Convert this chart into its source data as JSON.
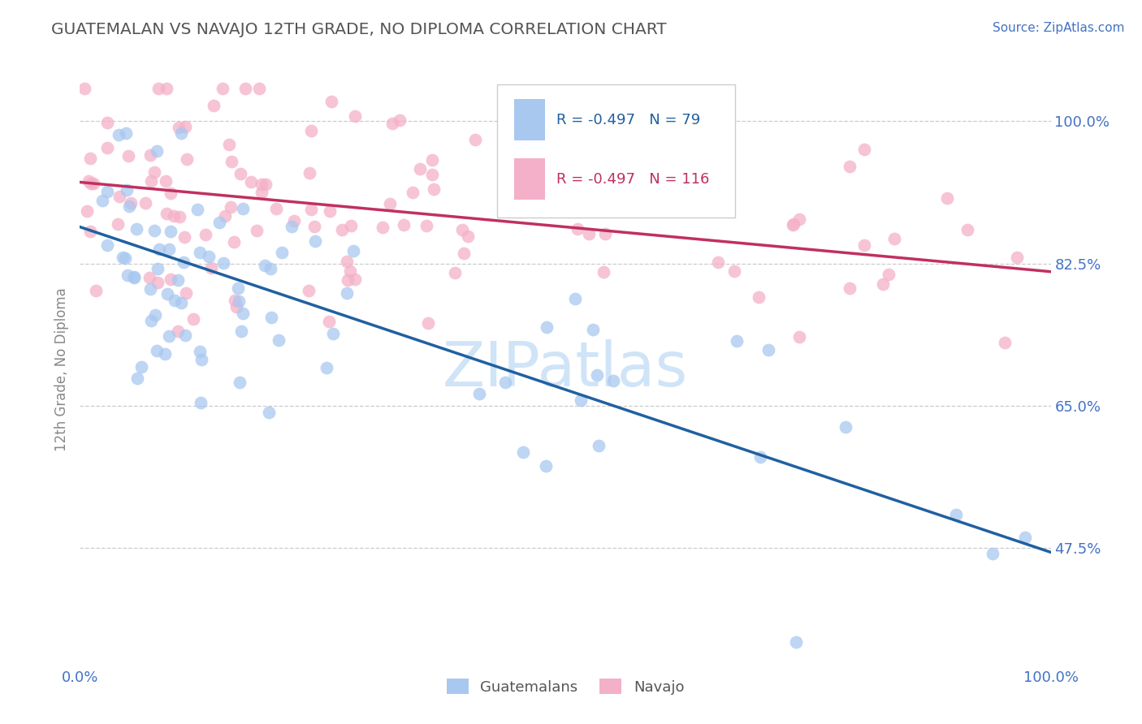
{
  "title": "GUATEMALAN VS NAVAJO 12TH GRADE, NO DIPLOMA CORRELATION CHART",
  "source_text": "Source: ZipAtlas.com",
  "ylabel": "12th Grade, No Diploma",
  "legend_labels": [
    "Guatemalans",
    "Navajo"
  ],
  "r_guatemalan": -0.497,
  "r_navajo": -0.497,
  "n_guatemalan": 79,
  "n_navajo": 116,
  "color_guatemalan": "#a8c8f0",
  "color_navajo": "#f4b0c8",
  "line_color_guatemalan": "#2060a0",
  "line_color_navajo": "#c03060",
  "legend_box_guatemalan": "#a8c8f0",
  "legend_box_navajo": "#f4b0c8",
  "bg_color": "#ffffff",
  "grid_color": "#cccccc",
  "axis_label_color": "#4472c4",
  "watermark": "ZIPatlas",
  "watermark_color": "#d0e4f8",
  "ytick_labels": [
    "100.0%",
    "82.5%",
    "65.0%",
    "47.5%"
  ],
  "ytick_values": [
    1.0,
    0.825,
    0.65,
    0.475
  ],
  "xmin": 0.0,
  "xmax": 1.0,
  "ymin": 0.33,
  "ymax": 1.06,
  "line_g_x0": 0.0,
  "line_g_y0": 0.87,
  "line_g_x1": 1.0,
  "line_g_y1": 0.47,
  "line_n_x0": 0.0,
  "line_n_y0": 0.925,
  "line_n_x1": 1.0,
  "line_n_y1": 0.815
}
